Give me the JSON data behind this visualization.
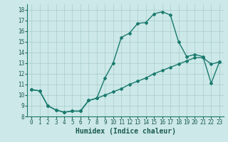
{
  "xlabel": "Humidex (Indice chaleur)",
  "ylabel": "",
  "xlim": [
    -0.5,
    23.5
  ],
  "ylim": [
    8,
    18.5
  ],
  "yticks": [
    8,
    9,
    10,
    11,
    12,
    13,
    14,
    15,
    16,
    17,
    18
  ],
  "xticks": [
    0,
    1,
    2,
    3,
    4,
    5,
    6,
    7,
    8,
    9,
    10,
    11,
    12,
    13,
    14,
    15,
    16,
    17,
    18,
    19,
    20,
    21,
    22,
    23
  ],
  "background_color": "#cce8e8",
  "line_color": "#1a7a6e",
  "grid_color": "#aacccc",
  "upper_x": [
    0,
    1,
    2,
    3,
    4,
    5,
    6,
    7,
    8,
    9,
    10,
    11,
    12,
    13,
    14,
    15,
    16,
    17,
    18,
    19,
    20,
    21,
    22,
    23
  ],
  "upper_y": [
    10.5,
    10.4,
    9.0,
    8.6,
    8.4,
    8.5,
    8.5,
    9.5,
    9.7,
    11.6,
    13.0,
    15.4,
    15.8,
    16.7,
    16.8,
    17.6,
    17.8,
    17.5,
    15.0,
    13.6,
    13.8,
    13.6,
    11.1,
    13.1
  ],
  "lower_x": [
    0,
    1,
    2,
    3,
    4,
    5,
    6,
    7,
    8,
    9,
    10,
    11,
    12,
    13,
    14,
    15,
    16,
    17,
    18,
    19,
    20,
    21,
    22,
    23
  ],
  "lower_y": [
    10.5,
    10.4,
    9.0,
    8.6,
    8.4,
    8.5,
    8.5,
    9.5,
    9.7,
    10.0,
    10.3,
    10.6,
    11.0,
    11.3,
    11.6,
    12.0,
    12.3,
    12.6,
    12.9,
    13.2,
    13.5,
    13.5,
    12.9,
    13.1
  ],
  "marker": "D",
  "markersize": 2.0,
  "linewidth": 1.0,
  "font_color": "#1a5a50",
  "xlabel_fontsize": 7,
  "tick_fontsize": 5.5
}
